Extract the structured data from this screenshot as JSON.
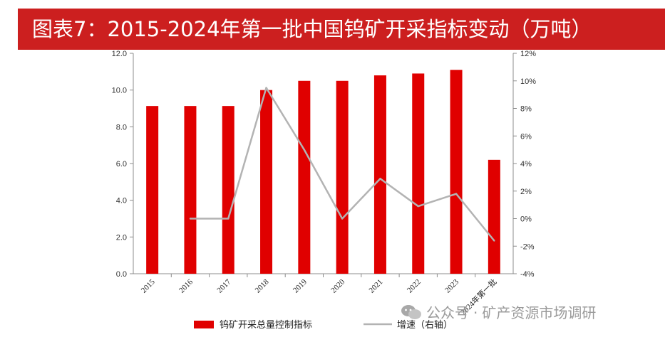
{
  "title": "图表7：2015-2024年第一批中国钨矿开采指标变动（万吨）",
  "watermark": {
    "prefix": "公众号",
    "separator": "·",
    "name": "矿产资源市场调研"
  },
  "chart_data": {
    "type": "bar",
    "categories": [
      "2015",
      "2016",
      "2017",
      "2018",
      "2019",
      "2020",
      "2021",
      "2022",
      "2023",
      "2024年第一批"
    ],
    "series": [
      {
        "name": "钨矿开采总量控制指标",
        "type": "bar",
        "axis": "left",
        "color": "#e00000",
        "values": [
          9.13,
          9.13,
          9.13,
          10.0,
          10.5,
          10.5,
          10.8,
          10.9,
          11.1,
          6.2
        ]
      },
      {
        "name": "增速（右轴）",
        "type": "line",
        "axis": "right",
        "color": "#b3b3b3",
        "values": [
          null,
          0.0,
          0.0,
          9.5,
          5.0,
          0.0,
          2.9,
          0.9,
          1.8,
          -1.6
        ]
      }
    ],
    "y_left": {
      "min": 0,
      "max": 12,
      "step": 2,
      "tick_labels": [
        "0.0",
        "2.0",
        "4.0",
        "6.0",
        "8.0",
        "10.0",
        "12.0"
      ]
    },
    "y_right": {
      "min": -4,
      "max": 12,
      "step": 2,
      "tick_labels": [
        "-4%",
        "-2%",
        "0%",
        "2%",
        "4%",
        "6%",
        "8%",
        "10%",
        "12%"
      ]
    },
    "grid": false,
    "legend": "bottom"
  }
}
